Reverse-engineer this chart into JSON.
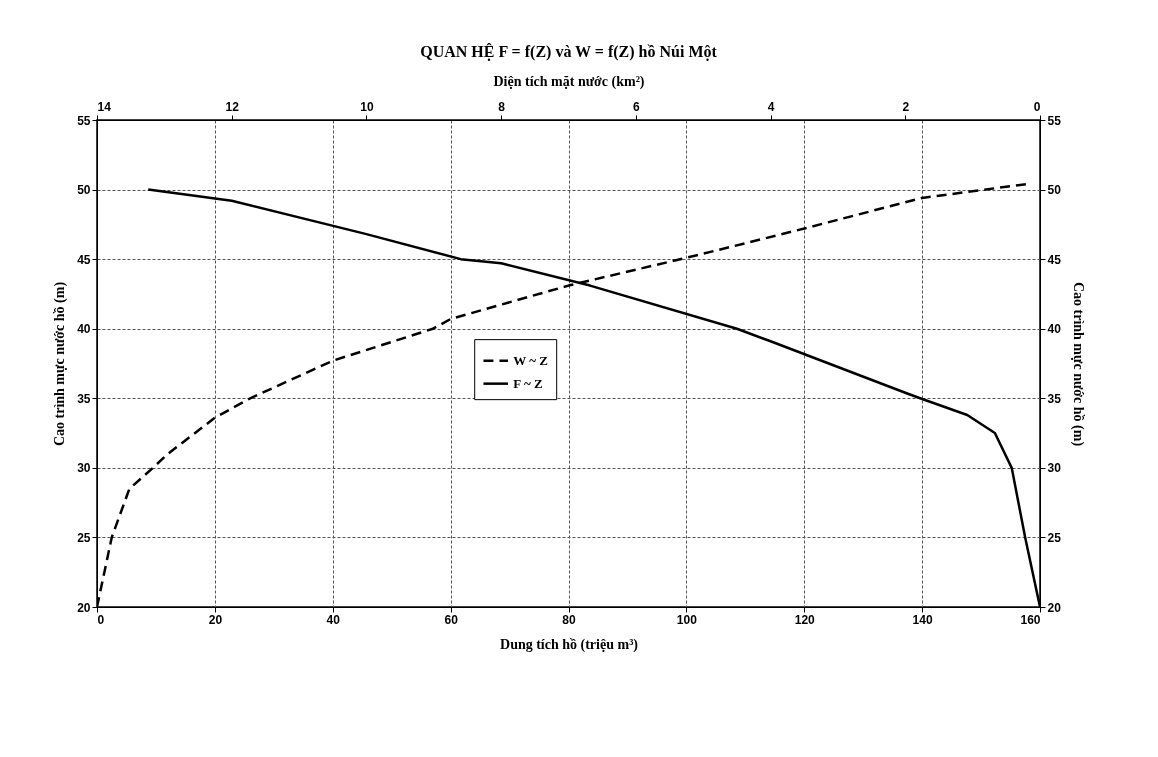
{
  "chart_data": {
    "type": "line",
    "title": "QUAN HỆ F =  f(Z) và W =  f(Z) hồ Núi Một",
    "xlabel": "Dung tích hồ  (triệu m³)",
    "x2label": "Diện tích mặt nước (km²)",
    "ylabel": "Cao trình mực nước hồ (m)",
    "y2label": "Cao trình mực nước hồ (m)",
    "xlim": [
      0,
      160
    ],
    "xticks": [
      0,
      20,
      40,
      60,
      80,
      100,
      120,
      140,
      160
    ],
    "x2lim": [
      14,
      0
    ],
    "x2ticks": [
      14,
      12,
      10,
      8,
      6,
      4,
      2,
      0
    ],
    "ylim": [
      20,
      55
    ],
    "yticks": [
      20,
      25,
      30,
      35,
      40,
      45,
      50,
      55
    ],
    "y2lim": [
      20,
      55
    ],
    "y2ticks": [
      20,
      25,
      30,
      35,
      40,
      45,
      50,
      55
    ],
    "grid": true,
    "legend": "center",
    "marker": "none",
    "series": [
      {
        "name": "W ~ Z",
        "color": "#000000",
        "line_style": "dashed",
        "x": [
          0,
          2.5,
          5.5,
          9.5,
          12,
          20,
          26,
          40,
          57,
          60,
          80,
          100,
          102,
          120,
          140,
          157.8
        ],
        "values": [
          20,
          25,
          28.5,
          30,
          31,
          33.6,
          35,
          37.7,
          40,
          40.7,
          43.1,
          45.1,
          45.3,
          47.2,
          49.4,
          50.4
        ]
      },
      {
        "name": "F ~ Z",
        "color": "#000000",
        "line_style": "solid",
        "axis": "x2",
        "x": [
          13.24,
          12,
          10,
          8.6,
          8,
          6.68,
          4.5,
          4,
          2,
          1.78,
          1.08,
          0.67,
          0.42,
          0.22,
          0
        ],
        "values": [
          50,
          49.2,
          46.8,
          45,
          44.7,
          43.1,
          40,
          39.1,
          35.4,
          35,
          33.8,
          32.5,
          30,
          25,
          20
        ]
      }
    ]
  }
}
